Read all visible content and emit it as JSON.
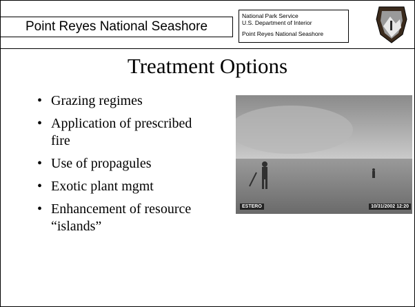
{
  "header": {
    "title": "Point Reyes National Seashore",
    "agency": [
      "National Park Service",
      "U.S. Department of Interior",
      "Point Reyes National Seashore"
    ]
  },
  "slide": {
    "title": "Treatment Options",
    "bullets": [
      "Grazing regimes",
      "Application of prescribed fire",
      "Use of propagules",
      "Exotic plant mgmt",
      "Enhancement of resource “islands”"
    ],
    "photo": {
      "location_label": "ESTERO",
      "timestamp": "10/31/2002 12:20"
    }
  }
}
